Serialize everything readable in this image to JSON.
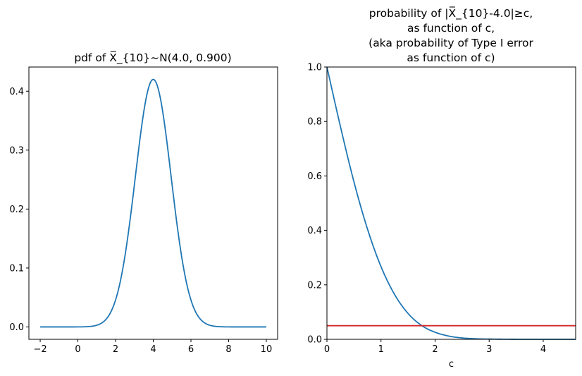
{
  "chart_data": [
    {
      "type": "line",
      "title": "pdf of X̅_{10}~N(4.0, 0.900)",
      "xlabel": "",
      "ylabel": "",
      "xlim": [
        -2.6,
        10.6
      ],
      "ylim": [
        -0.021,
        0.441
      ],
      "xticks": [
        -2,
        0,
        2,
        4,
        6,
        8,
        10
      ],
      "yticks": [
        0.0,
        0.1,
        0.2,
        0.3,
        0.4
      ],
      "series": [
        {
          "color": "#1f77b4",
          "x": [
            -2,
            0,
            1,
            1.5,
            2,
            2.5,
            3,
            3.5,
            4,
            4.5,
            5,
            5.5,
            6,
            6.5,
            7,
            8,
            10
          ],
          "y": [
            0.0,
            0.0,
            0.002,
            0.009,
            0.032,
            0.088,
            0.194,
            0.333,
            0.42,
            0.333,
            0.194,
            0.088,
            0.032,
            0.009,
            0.002,
            0.0,
            0.0
          ]
        }
      ]
    },
    {
      "type": "line",
      "title": [
        "probability of |X̅_{10}-4.0|≥c,",
        "as function of c,",
        "(aka probability of Type I error",
        "as function of c)"
      ],
      "xlabel": "c",
      "ylabel": "",
      "xlim": [
        0,
        4.6
      ],
      "ylim": [
        0,
        1.0
      ],
      "xticks": [
        0,
        1,
        2,
        3,
        4
      ],
      "yticks": [
        0.0,
        0.2,
        0.4,
        0.6,
        0.8,
        1.0
      ],
      "series": [
        {
          "color": "#1f77b4",
          "x": [
            0,
            0.25,
            0.5,
            0.75,
            1.0,
            1.25,
            1.5,
            1.75,
            2.0,
            2.25,
            2.5,
            2.75,
            3.0,
            3.5,
            4.0,
            4.6
          ],
          "y": [
            1.0,
            0.781,
            0.578,
            0.405,
            0.267,
            0.165,
            0.095,
            0.051,
            0.026,
            0.012,
            0.005,
            0.002,
            0.0009,
            0.0001,
            0.0,
            0.0
          ]
        },
        {
          "color": "#d62728",
          "x": [
            0,
            4.6
          ],
          "y": [
            0.05,
            0.05
          ]
        }
      ]
    }
  ]
}
